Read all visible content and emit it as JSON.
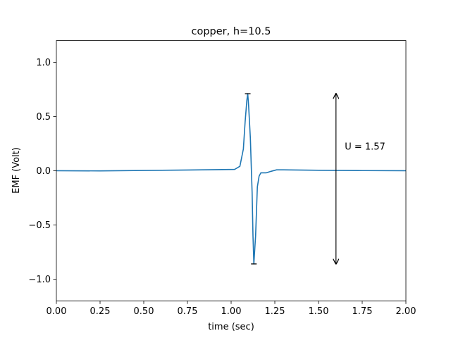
{
  "chart_data": {
    "type": "line",
    "title": "copper, h=10.5",
    "xlabel": "time (sec)",
    "ylabel": "EMF (Volt)",
    "xlim": [
      0,
      2
    ],
    "ylim": [
      -1.2,
      1.2
    ],
    "xticks": [
      0,
      0.25,
      0.5,
      0.75,
      1.0,
      1.25,
      1.5,
      1.75,
      2.0
    ],
    "xtick_labels": [
      "0.00",
      "0.25",
      "0.50",
      "0.75",
      "1.00",
      "1.25",
      "1.50",
      "1.75",
      "2.00"
    ],
    "yticks": [
      -1.0,
      -0.5,
      0.0,
      0.5,
      1.0
    ],
    "ytick_labels": [
      "−1.0",
      "−0.5",
      "0.0",
      "0.5",
      "1.0"
    ],
    "grid": false,
    "series": [
      {
        "color": "#1f77b4",
        "points": [
          [
            0.0,
            0.0
          ],
          [
            0.25,
            -0.002
          ],
          [
            0.5,
            0.002
          ],
          [
            0.75,
            0.006
          ],
          [
            0.95,
            0.01
          ],
          [
            1.02,
            0.012
          ],
          [
            1.05,
            0.04
          ],
          [
            1.07,
            0.2
          ],
          [
            1.08,
            0.45
          ],
          [
            1.09,
            0.65
          ],
          [
            1.095,
            0.71
          ],
          [
            1.1,
            0.6
          ],
          [
            1.11,
            0.3
          ],
          [
            1.12,
            -0.2
          ],
          [
            1.125,
            -0.6
          ],
          [
            1.13,
            -0.86
          ],
          [
            1.14,
            -0.6
          ],
          [
            1.15,
            -0.15
          ],
          [
            1.16,
            -0.05
          ],
          [
            1.17,
            -0.02
          ],
          [
            1.2,
            -0.02
          ],
          [
            1.23,
            -0.005
          ],
          [
            1.26,
            0.008
          ],
          [
            1.3,
            0.008
          ],
          [
            1.5,
            0.004
          ],
          [
            1.75,
            0.001
          ],
          [
            2.0,
            0.0
          ]
        ]
      }
    ],
    "extreme_markers": [
      {
        "x": 1.095,
        "y": 0.71
      },
      {
        "x": 1.13,
        "y": -0.86
      }
    ],
    "annotation": {
      "text": "U = 1.57",
      "arrow_x": 1.6,
      "arrow_y_top": 0.71,
      "arrow_y_bottom": -0.86,
      "text_x": 1.65,
      "text_y": 0.22
    }
  }
}
